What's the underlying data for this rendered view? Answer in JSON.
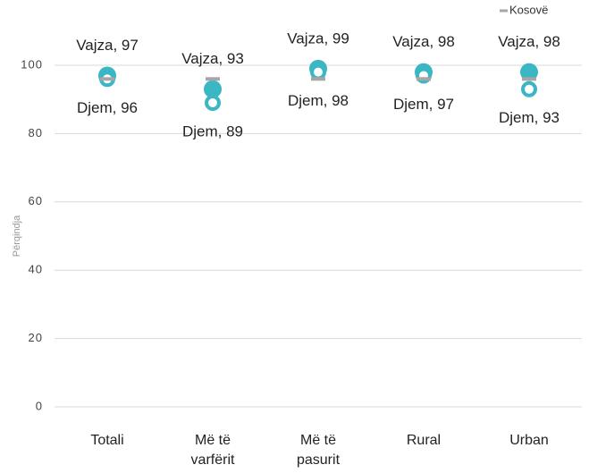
{
  "chart_data": {
    "type": "dot",
    "y_label": "Përqindja",
    "categories": [
      "Totali",
      "Më të\nvarfërit",
      "Më të\npasurit",
      "Rural",
      "Urban"
    ],
    "series": [
      {
        "style": "filled",
        "color": "#3bb7c4",
        "values": [
          97,
          93,
          99,
          98,
          98
        ],
        "value_labels": [
          "Vajza, 97",
          "Vajza, 93",
          "Vajza, 99",
          "Vajza, 98",
          "Vajza, 98"
        ],
        "label_position": "above"
      },
      {
        "style": "ring",
        "color": "#3bb7c4",
        "values": [
          96,
          89,
          98,
          97,
          93
        ],
        "value_labels": [
          "Djem, 96",
          "Djem, 89",
          "Djem, 98",
          "Djem, 97",
          "Djem, 93"
        ],
        "label_position": "below"
      },
      {
        "name": "Kosovë",
        "style": "dash",
        "color": "#a6a6a6",
        "values": [
          96,
          96,
          96,
          96,
          96
        ]
      }
    ],
    "ylim": [
      0,
      100
    ],
    "yticks": [
      0,
      20,
      40,
      60,
      80,
      100
    ],
    "grid": true,
    "legend": "top-right"
  }
}
